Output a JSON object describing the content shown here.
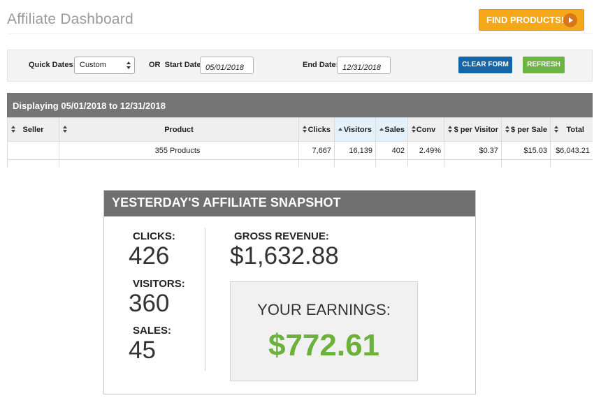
{
  "header": {
    "title": "Affiliate Dashboard",
    "find_products_label": "FIND PRODUCTS!"
  },
  "filters": {
    "quick_dates_label": "Quick Dates:",
    "quick_dates_value": "Custom",
    "start_date_label": "OR  Start Date:",
    "start_date_value": "05/01/2018",
    "end_date_label": "End Date:",
    "end_date_value": "12/31/2018",
    "clear_label": "CLEAR FORM",
    "refresh_label": "REFRESH"
  },
  "table": {
    "caption": "Displaying 05/01/2018 to 12/31/2018",
    "columns": [
      "Seller",
      "Product",
      "Clicks",
      "Visitors",
      "Sales",
      "Conv",
      "$ per Visitor",
      "$ per Sale",
      "Total"
    ],
    "row": {
      "seller": "",
      "product": "355 Products",
      "clicks": "7,667",
      "visitors": "16,139",
      "sales": "402",
      "conv": "2.49%",
      "per_visitor": "$0.37",
      "per_sale": "$15.03",
      "total": "$6,043.21"
    }
  },
  "snapshot": {
    "title": "YESTERDAY'S AFFILIATE SNAPSHOT",
    "clicks_label": "CLICKS:",
    "clicks_value": "426",
    "visitors_label": "VISITORS:",
    "visitors_value": "360",
    "sales_label": "SALES:",
    "sales_value": "45",
    "gross_label": "GROSS REVENUE:",
    "gross_value": "$1,632.88",
    "earnings_label": "YOUR EARNINGS:",
    "earnings_value": "$772.61"
  },
  "colors": {
    "accent_orange": "#f6a81b",
    "clear_blue": "#1565a7",
    "refresh_green": "#6cb443",
    "earnings_green": "#6bb13c",
    "header_gray": "#757575"
  },
  "icons": {
    "find_products": "play-circle-icon",
    "sort": "sort-arrows-icon",
    "sort_up": "sort-up-icon",
    "select": "select-arrows-icon"
  }
}
